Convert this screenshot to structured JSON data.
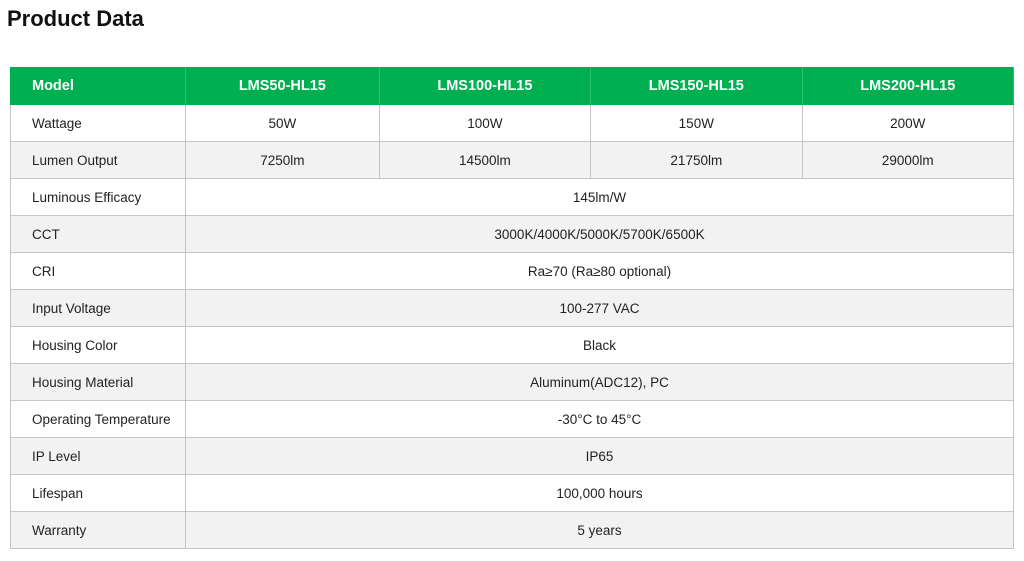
{
  "title": "Product Data",
  "colors": {
    "header_bg": "#00b050",
    "alt_row_bg": "#f2f2f2"
  },
  "table": {
    "header": {
      "label": "Model",
      "models": [
        "LMS50-HL15",
        "LMS100-HL15",
        "LMS150-HL15",
        "LMS200-HL15"
      ]
    },
    "per_model_rows": [
      {
        "label": "Wattage",
        "values": [
          "50W",
          "100W",
          "150W",
          "200W"
        ]
      },
      {
        "label": "Lumen Output",
        "values": [
          "7250lm",
          "14500lm",
          "21750lm",
          "29000lm"
        ]
      }
    ],
    "shared_rows": [
      {
        "label": "Luminous Efficacy",
        "value": "145lm/W"
      },
      {
        "label": "CCT",
        "value": "3000K/4000K/5000K/5700K/6500K"
      },
      {
        "label": "CRI",
        "value": "Ra≥70 (Ra≥80 optional)"
      },
      {
        "label": "Input Voltage",
        "value": "100-277 VAC"
      },
      {
        "label": "Housing Color",
        "value": "Black"
      },
      {
        "label": "Housing Material",
        "value": "Aluminum(ADC12), PC"
      },
      {
        "label": "Operating Temperature",
        "value": "-30°C to 45°C"
      },
      {
        "label": "IP Level",
        "value": "IP65"
      },
      {
        "label": "Lifespan",
        "value": "100,000 hours"
      },
      {
        "label": "Warranty",
        "value": "5 years"
      }
    ]
  }
}
